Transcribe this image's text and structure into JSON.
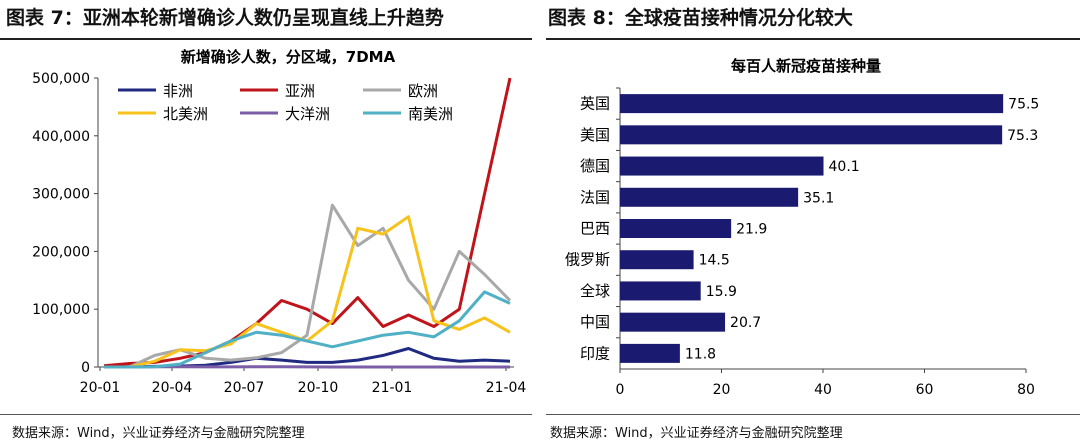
{
  "left_panel": {
    "header": "图表 7：亚洲本轮新增确诊人数仍呈现直线上升趋势",
    "source": "数据来源：Wind，兴业证券经济与金融研究院整理"
  },
  "right_panel": {
    "header": "图表 8：全球疫苗接种情况分化较大",
    "source": "数据来源：Wind，兴业证券经济与金融研究院整理"
  },
  "chart_data": [
    {
      "type": "line",
      "title": "新增确诊人数，分区域，7DMA",
      "xlabel": "",
      "ylabel": "",
      "ylim": [
        0,
        500000
      ],
      "yticks": [
        "0",
        "100,000",
        "200,000",
        "300,000",
        "400,000",
        "500,000"
      ],
      "xticks": [
        "20-01",
        "20-04",
        "20-07",
        "20-10",
        "21-01",
        "21-04"
      ],
      "xlim": [
        "2020-01",
        "2021-04"
      ],
      "legend_position": "top",
      "x": [
        "2020-01",
        "2020-02",
        "2020-03",
        "2020-04",
        "2020-05",
        "2020-06",
        "2020-07",
        "2020-08",
        "2020-09",
        "2020-10",
        "2020-11",
        "2020-12",
        "2021-01",
        "2021-02",
        "2021-03",
        "2021-04",
        "2021-04-end"
      ],
      "series": [
        {
          "name": "非洲",
          "color": "#1f2a80",
          "values": [
            0,
            500,
            1000,
            1500,
            3000,
            8000,
            15000,
            12000,
            8000,
            8000,
            12000,
            20000,
            32000,
            15000,
            10000,
            12000,
            10000
          ]
        },
        {
          "name": "亚洲",
          "color": "#c0141b",
          "values": [
            2000,
            6000,
            8000,
            15000,
            25000,
            45000,
            75000,
            115000,
            100000,
            75000,
            120000,
            70000,
            90000,
            70000,
            100000,
            300000,
            500000
          ]
        },
        {
          "name": "欧洲",
          "color": "#a8a8a8",
          "values": [
            0,
            0,
            20000,
            30000,
            15000,
            12000,
            16000,
            25000,
            55000,
            280000,
            210000,
            240000,
            150000,
            100000,
            200000,
            160000,
            115000
          ]
        },
        {
          "name": "北美洲",
          "color": "#f7c21c",
          "values": [
            0,
            0,
            10000,
            30000,
            28000,
            40000,
            75000,
            60000,
            45000,
            80000,
            240000,
            230000,
            260000,
            80000,
            65000,
            85000,
            60000
          ]
        },
        {
          "name": "大洋洲",
          "color": "#7b5ea7",
          "values": [
            0,
            0,
            300,
            500,
            100,
            100,
            400,
            300,
            100,
            50,
            50,
            50,
            50,
            50,
            50,
            50,
            50
          ]
        },
        {
          "name": "南美洲",
          "color": "#4fb0c6",
          "values": [
            0,
            0,
            500,
            5000,
            25000,
            45000,
            60000,
            55000,
            45000,
            35000,
            45000,
            55000,
            60000,
            52000,
            80000,
            130000,
            110000
          ]
        }
      ]
    },
    {
      "type": "bar",
      "orientation": "horizontal",
      "title": "每百人新冠疫苗接种量",
      "xlabel": "",
      "ylabel": "",
      "xlim": [
        0,
        80
      ],
      "xticks": [
        "0",
        "20",
        "40",
        "60",
        "80"
      ],
      "color": "#1a1a70",
      "categories": [
        "英国",
        "美国",
        "德国",
        "法国",
        "巴西",
        "俄罗斯",
        "全球",
        "中国",
        "印度"
      ],
      "values": [
        75.5,
        75.3,
        40.1,
        35.1,
        21.9,
        14.5,
        15.9,
        20.7,
        11.8
      ],
      "value_labels": [
        "75.5",
        "75.3",
        "40.1",
        "35.1",
        "21.9",
        "14.5",
        "15.9",
        "20.7",
        "11.8"
      ]
    }
  ]
}
